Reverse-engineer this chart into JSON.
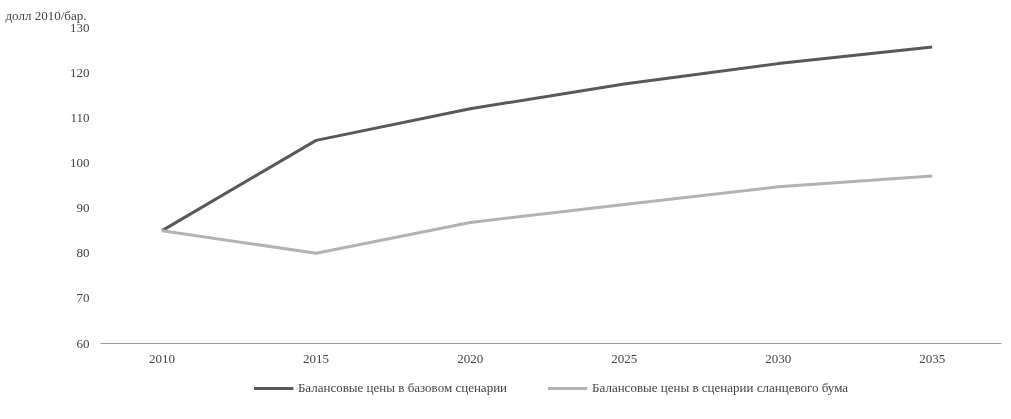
{
  "chart_data": {
    "type": "line",
    "ylabel": "долл 2010/бар.",
    "categories": [
      "2010",
      "2015",
      "2020",
      "2025",
      "2030",
      "2035"
    ],
    "series": [
      {
        "name": "Балансовые цены в базовом сценарии",
        "color": "#595959",
        "values": [
          85,
          105,
          112,
          117.5,
          122,
          125.7
        ]
      },
      {
        "name": "Балансовые цены в сценарии сланцевого бума",
        "color": "#b3b3b3",
        "values": [
          85,
          80,
          86.8,
          90.8,
          94.7,
          97.1
        ]
      }
    ],
    "ylim": [
      60,
      130
    ],
    "yticks": [
      60,
      70,
      80,
      90,
      100,
      110,
      120,
      130
    ],
    "grid": false,
    "legend": "bottom",
    "marker": "none",
    "line_style": "solid"
  }
}
